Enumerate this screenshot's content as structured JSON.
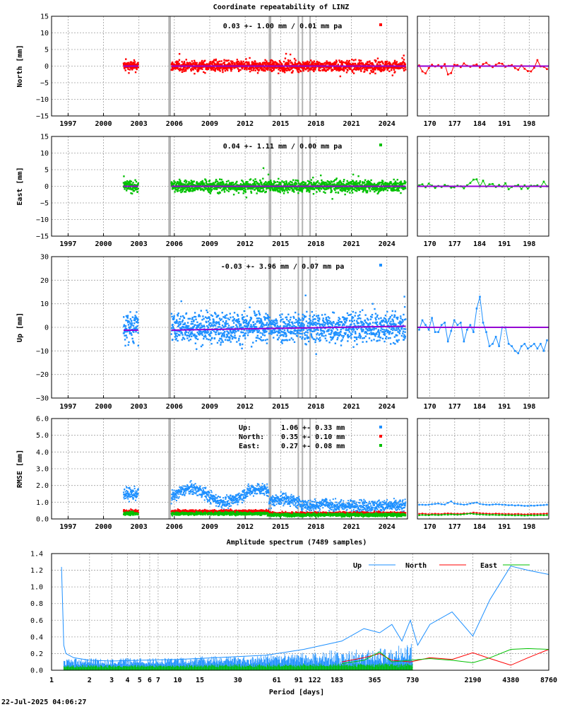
{
  "title": "Coordinate repeatability of LINZ",
  "colors": {
    "north": "#ff0000",
    "east": "#00c000",
    "up": "#1e90ff",
    "mean": "#9400d3",
    "event": "#b4b4b4"
  },
  "time_axis": {
    "ticks": [
      "1997",
      "2000",
      "2003",
      "2006",
      "2009",
      "2012",
      "2015",
      "2018",
      "2021",
      "2024"
    ],
    "range": [
      1995.6,
      2025.75
    ]
  },
  "recent_axis": {
    "ticks": [
      "170",
      "177",
      "184",
      "191",
      "198"
    ],
    "range": [
      166.5,
      203.5
    ]
  },
  "events": [
    2005.55,
    2005.65,
    2014.05,
    2014.15,
    2016.5,
    2016.85,
    2017.5
  ],
  "chart_data": [
    {
      "id": "north",
      "type": "scatter",
      "ylabel": "North [mm]",
      "ylim": [
        -15,
        15
      ],
      "yticks": [
        "15",
        "10",
        "5",
        "0",
        "−5",
        "−10",
        "−15"
      ],
      "yvalues": [
        15,
        10,
        5,
        0,
        -5,
        -10,
        -15
      ],
      "stats": "0.03 +- 1.00 mm /  0.01 mm pa",
      "spread": 1.0,
      "recent_values": [
        0.2,
        -1.6,
        -2.2,
        -0.6,
        0.4,
        -0.1,
        0.3,
        -0.5,
        0.6,
        -2.5,
        -2.1,
        0.4,
        0.3,
        -0.3,
        0.8,
        0.1,
        -0.2,
        0.2,
        0.5,
        -0.4,
        0.6,
        1.0,
        0.2,
        -0.3,
        0.4,
        0.9,
        0.7,
        -0.2,
        0.1,
        0.3,
        -0.6,
        -1.1,
        0.2,
        -0.8,
        -1.5,
        -1.6,
        -0.5,
        1.8,
        -0.1,
        -0.2,
        -0.9
      ]
    },
    {
      "id": "east",
      "type": "scatter",
      "ylabel": "East [mm]",
      "ylim": [
        -15,
        15
      ],
      "yticks": [
        "15",
        "10",
        "5",
        "0",
        "−5",
        "−10",
        "−15"
      ],
      "yvalues": [
        15,
        10,
        5,
        0,
        -5,
        -10,
        -15
      ],
      "stats": "0.04 +- 1.11 mm /  0.00 mm pa",
      "spread": 1.11,
      "recent_values": [
        0.3,
        0.6,
        -0.3,
        0.8,
        0.2,
        -0.5,
        0.1,
        -0.2,
        0.4,
        0.1,
        -0.4,
        -0.3,
        0.2,
        0.0,
        -0.6,
        0.3,
        1.0,
        2.0,
        2.1,
        0.0,
        1.7,
        -0.1,
        0.6,
        0.7,
        -0.2,
        0.4,
        -0.1,
        0.9,
        -0.9,
        -0.2,
        0.1,
        0.4,
        -0.8,
        0.3,
        -0.7,
        0.2,
        0.1,
        0.3,
        -0.2,
        1.4,
        0.0
      ]
    },
    {
      "id": "up",
      "type": "scatter",
      "ylabel": "Up [mm]",
      "ylim": [
        -30,
        30
      ],
      "yticks": [
        "30",
        "20",
        "10",
        "0",
        "−10",
        "−20",
        "−30"
      ],
      "yvalues": [
        30,
        20,
        10,
        0,
        -10,
        -20,
        -30
      ],
      "stats": "-0.03 +- 3.96 mm /  0.07 mm pa",
      "spread": 3.96,
      "recent_values": [
        -1.0,
        3.0,
        1.0,
        -1.0,
        4.0,
        -2.0,
        -2.0,
        1.0,
        2.0,
        -6.0,
        -1.5,
        3.0,
        1.0,
        2.0,
        -6.0,
        -1.0,
        1.0,
        -2.0,
        8.0,
        13.0,
        2.0,
        -2.0,
        -8.0,
        -7.0,
        -4.0,
        -8.0,
        0.0,
        0.0,
        -7.0,
        -8.0,
        -10.0,
        -11.0,
        -8.0,
        -7.0,
        -9.0,
        -8.0,
        -7.0,
        -9.0,
        -7.0,
        -10.0,
        -5.5
      ]
    },
    {
      "id": "rmse",
      "type": "scatter",
      "ylabel": "RMSE [mm]",
      "ylim": [
        0,
        6
      ],
      "yticks": [
        "6.0",
        "5.0",
        "4.0",
        "3.0",
        "2.0",
        "1.0",
        "0.0"
      ],
      "yvalues": [
        6,
        5,
        4,
        3,
        2,
        1,
        0
      ],
      "legend": [
        {
          "name": "Up:",
          "value": "1.06 +- 0.33 mm",
          "color_key": "up"
        },
        {
          "name": "North:",
          "value": "0.35 +- 0.10 mm",
          "color_key": "north"
        },
        {
          "name": "East:",
          "value": "0.27 +- 0.08 mm",
          "color_key": "east"
        }
      ],
      "series_levels": {
        "up": 1.06,
        "north": 0.35,
        "east": 0.27
      },
      "recent_series": {
        "up": [
          0.85,
          0.85,
          0.84,
          0.85,
          0.88,
          0.9,
          0.92,
          0.88,
          0.86,
          0.96,
          1.05,
          0.92,
          0.9,
          0.88,
          0.85,
          0.87,
          0.92,
          0.95,
          0.98,
          0.9,
          0.87,
          0.85,
          0.84,
          0.86,
          0.88,
          0.87,
          0.85,
          0.84,
          0.82,
          0.83,
          0.8,
          0.82,
          0.8,
          0.78,
          0.78,
          0.8,
          0.79,
          0.81,
          0.82,
          0.83,
          0.85
        ],
        "north": [
          0.3,
          0.32,
          0.3,
          0.28,
          0.3,
          0.31,
          0.3,
          0.29,
          0.32,
          0.33,
          0.32,
          0.3,
          0.31,
          0.3,
          0.33,
          0.32,
          0.34,
          0.38,
          0.36,
          0.34,
          0.33,
          0.32,
          0.31,
          0.3,
          0.32,
          0.31,
          0.3,
          0.29,
          0.3,
          0.28,
          0.29,
          0.3,
          0.28,
          0.27,
          0.28,
          0.29,
          0.3,
          0.29,
          0.3,
          0.31,
          0.32
        ],
        "east": [
          0.22,
          0.24,
          0.23,
          0.22,
          0.25,
          0.24,
          0.23,
          0.24,
          0.26,
          0.25,
          0.27,
          0.26,
          0.25,
          0.26,
          0.28,
          0.3,
          0.32,
          0.3,
          0.28,
          0.27,
          0.26,
          0.25,
          0.24,
          0.25,
          0.24,
          0.23,
          0.24,
          0.22,
          0.23,
          0.22,
          0.21,
          0.22,
          0.21,
          0.2,
          0.21,
          0.22,
          0.21,
          0.22,
          0.23,
          0.22,
          0.23
        ]
      }
    },
    {
      "id": "spectrum",
      "type": "line",
      "title": "Amplitude spectrum (7489 samples)",
      "xlabel": "Period [days]",
      "ylim": [
        0,
        1.4
      ],
      "yticks": [
        "1.4",
        "1.2",
        "1.0",
        "0.8",
        "0.6",
        "0.4",
        "0.2",
        "0.0"
      ],
      "yvalues": [
        1.4,
        1.2,
        1.0,
        0.8,
        0.6,
        0.4,
        0.2,
        0.0
      ],
      "xticks": [
        "1",
        "2",
        "3",
        "4",
        "5",
        "6",
        "7",
        "10",
        "15",
        "30",
        "61",
        "91",
        "122",
        "183",
        "365",
        "730",
        "2190",
        "4380",
        "8760"
      ],
      "xtick_values": [
        1,
        2,
        3,
        4,
        5,
        6,
        7,
        10,
        15,
        30,
        61,
        91,
        122,
        183,
        365,
        730,
        2190,
        4380,
        8760
      ],
      "xlim": [
        1,
        8760
      ],
      "series": [
        {
          "name": "Up",
          "color_key": "up",
          "x": [
            1.2,
            1.25,
            1.3,
            1.5,
            2,
            3,
            5,
            10,
            20,
            50,
            100,
            200,
            300,
            400,
            500,
            600,
            700,
            800,
            1000,
            1500,
            2190,
            3000,
            4380,
            6000,
            8760
          ],
          "y": [
            1.24,
            0.3,
            0.2,
            0.15,
            0.12,
            0.11,
            0.12,
            0.13,
            0.15,
            0.18,
            0.25,
            0.35,
            0.5,
            0.45,
            0.55,
            0.35,
            0.6,
            0.3,
            0.55,
            0.7,
            0.41,
            0.85,
            1.25,
            1.2,
            1.15
          ]
        },
        {
          "name": "North",
          "color_key": "north",
          "x": [
            200,
            300,
            400,
            500,
            700,
            1000,
            1500,
            2190,
            3000,
            4380,
            6000,
            8760
          ],
          "y": [
            0.1,
            0.15,
            0.2,
            0.12,
            0.1,
            0.15,
            0.13,
            0.21,
            0.14,
            0.06,
            0.15,
            0.25
          ]
        },
        {
          "name": "East",
          "color_key": "east",
          "x": [
            200,
            300,
            400,
            500,
            700,
            1000,
            1500,
            2190,
            3000,
            4380,
            6000,
            8760
          ],
          "y": [
            0.08,
            0.12,
            0.22,
            0.1,
            0.12,
            0.14,
            0.12,
            0.09,
            0.15,
            0.25,
            0.26,
            0.25
          ]
        }
      ]
    }
  ],
  "timestamp": "22-Jul-2025 04:06:27"
}
